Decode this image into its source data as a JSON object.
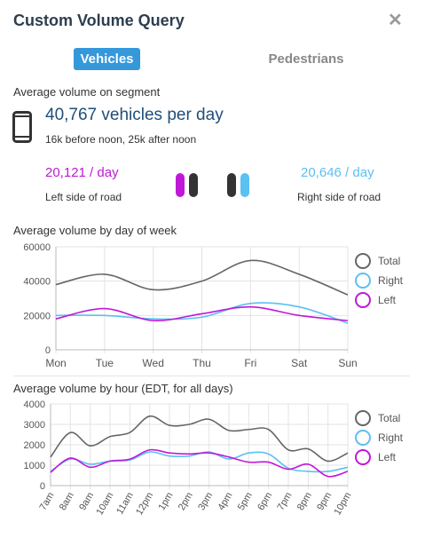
{
  "header": {
    "title": "Custom Volume Query"
  },
  "tabs": [
    {
      "label": "Vehicles",
      "active": true
    },
    {
      "label": "Pedestrians",
      "active": false
    }
  ],
  "summary": {
    "section_label": "Average volume on segment",
    "total": "40,767 vehicles per day",
    "split": "16k before noon, 25k after noon",
    "left_value": "20,121 / day",
    "left_label": "Left side of road",
    "right_value": "20,646 / day",
    "right_label": "Right side of road"
  },
  "colors": {
    "total": "#666666",
    "right": "#5bc0f2",
    "left": "#c018d8",
    "accent": "#3498db"
  },
  "chart_data": [
    {
      "type": "line",
      "title": "Average volume by day of week",
      "categories": [
        "Mon",
        "Tue",
        "Wed",
        "Thu",
        "Fri",
        "Sat",
        "Sun"
      ],
      "ylim": [
        0,
        60000
      ],
      "yticks": [
        0,
        20000,
        40000,
        60000
      ],
      "grid": true,
      "legend": "right",
      "series": [
        {
          "name": "Total",
          "values": [
            38000,
            44000,
            35000,
            40000,
            52000,
            44000,
            32000
          ]
        },
        {
          "name": "Right",
          "values": [
            20000,
            20000,
            18000,
            19000,
            27000,
            25000,
            15500
          ]
        },
        {
          "name": "Left",
          "values": [
            18000,
            24000,
            17000,
            21000,
            25000,
            20000,
            17000
          ]
        }
      ]
    },
    {
      "type": "line",
      "title": "Average volume by hour (EDT, for all days)",
      "categories": [
        "7am",
        "8am",
        "9am",
        "10am",
        "11am",
        "12pm",
        "1pm",
        "2pm",
        "3pm",
        "4pm",
        "5pm",
        "6pm",
        "7pm",
        "8pm",
        "9pm",
        "10pm"
      ],
      "ylim": [
        0,
        4000
      ],
      "yticks": [
        0,
        1000,
        2000,
        3000,
        4000
      ],
      "grid": true,
      "legend": "right",
      "series": [
        {
          "name": "Total",
          "values": [
            1400,
            2600,
            1950,
            2400,
            2600,
            3400,
            2950,
            3000,
            3250,
            2700,
            2750,
            2750,
            1750,
            1800,
            1200,
            1600
          ]
        },
        {
          "name": "Right",
          "values": [
            700,
            1300,
            1050,
            1200,
            1250,
            1650,
            1450,
            1450,
            1650,
            1300,
            1600,
            1550,
            850,
            700,
            700,
            900
          ]
        },
        {
          "name": "Left",
          "values": [
            650,
            1350,
            900,
            1200,
            1300,
            1750,
            1600,
            1550,
            1600,
            1400,
            1150,
            1150,
            800,
            1050,
            450,
            700
          ]
        }
      ]
    }
  ]
}
